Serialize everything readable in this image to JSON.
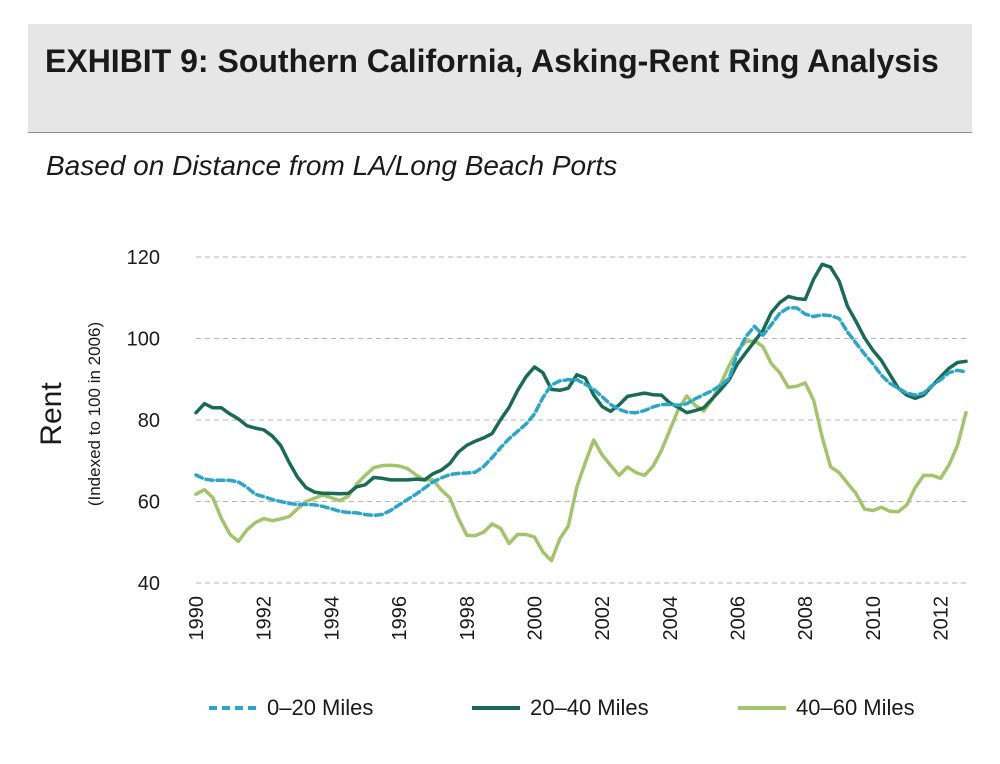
{
  "header": {
    "title": "EXHIBIT 9:  Southern California, Asking-Rent Ring Analysis",
    "subtitle": "Based on Distance from LA/Long Beach Ports"
  },
  "chart_data": {
    "type": "line",
    "ylabel": "Rent",
    "ylabel_sub": "(Indexed to 100 in 2006)",
    "ylim": [
      40,
      120
    ],
    "xlim": [
      1990,
      2012.75
    ],
    "y_ticks": [
      "40",
      "60",
      "80",
      "100",
      "120"
    ],
    "x_ticks": [
      "1990",
      "1992",
      "1994",
      "1996",
      "1998",
      "2000",
      "2002",
      "2004",
      "2006",
      "2008",
      "2010",
      "2012"
    ],
    "grid": "horizontal dashed",
    "legend_position": "bottom",
    "series": [
      {
        "name": "0–20 Miles",
        "color": "#2aa6c9",
        "style": "dashed",
        "x": [
          1990,
          1990.25,
          1990.5,
          1990.75,
          1991,
          1991.25,
          1991.5,
          1991.75,
          1992,
          1992.25,
          1992.5,
          1992.75,
          1993,
          1993.25,
          1993.5,
          1993.75,
          1994,
          1994.25,
          1994.5,
          1994.75,
          1995,
          1995.25,
          1995.5,
          1995.75,
          1996,
          1996.25,
          1996.5,
          1996.75,
          1997,
          1997.25,
          1997.5,
          1997.75,
          1998,
          1998.25,
          1998.5,
          1998.75,
          1999,
          1999.25,
          1999.5,
          1999.75,
          2000,
          2000.25,
          2000.5,
          2000.75,
          2001,
          2001.25,
          2001.5,
          2001.75,
          2002,
          2002.25,
          2002.5,
          2002.75,
          2003,
          2003.25,
          2003.5,
          2003.75,
          2004,
          2004.25,
          2004.5,
          2004.75,
          2005,
          2005.25,
          2005.5,
          2005.75,
          2006,
          2006.25,
          2006.5,
          2006.75,
          2007,
          2007.25,
          2007.5,
          2007.75,
          2008,
          2008.25,
          2008.5,
          2008.75,
          2009,
          2009.25,
          2009.5,
          2009.75,
          2010,
          2010.25,
          2010.5,
          2010.75,
          2011,
          2011.25,
          2011.5,
          2011.75,
          2012,
          2012.25,
          2012.5,
          2012.75
        ],
        "values": [
          66.5,
          65.5,
          65.2,
          65.2,
          65.2,
          64.8,
          63.5,
          61.8,
          61.2,
          60.5,
          60.0,
          59.5,
          59.3,
          59.3,
          59.2,
          58.8,
          58.2,
          57.6,
          57.3,
          57.2,
          56.8,
          56.6,
          56.8,
          57.8,
          59.2,
          60.5,
          61.8,
          63.3,
          64.8,
          65.8,
          66.6,
          66.9,
          67.0,
          67.2,
          68.6,
          70.8,
          73.2,
          75.4,
          77.2,
          79.0,
          81.5,
          85.5,
          88.6,
          89.6,
          89.9,
          89.9,
          88.8,
          87.5,
          85.7,
          83.8,
          82.6,
          81.9,
          81.8,
          82.3,
          83.2,
          83.8,
          83.8,
          83.6,
          84.0,
          85.2,
          86.2,
          87.2,
          88.5,
          90.2,
          96.5,
          100.5,
          103.0,
          100.8,
          103.4,
          106.2,
          107.5,
          107.5,
          106.0,
          105.4,
          105.8,
          105.6,
          104.9,
          101.6,
          98.9,
          96.2,
          93.8,
          91.0,
          89.0,
          87.8,
          86.6,
          86.1,
          86.6,
          88.5,
          89.9,
          91.6,
          92.2,
          91.8
        ]
      },
      {
        "name": "20–40 Miles",
        "color": "#1a6b55",
        "style": "solid",
        "x": [
          1990,
          1990.25,
          1990.5,
          1990.75,
          1991,
          1991.25,
          1991.5,
          1991.75,
          1992,
          1992.25,
          1992.5,
          1992.75,
          1993,
          1993.25,
          1993.5,
          1993.75,
          1994,
          1994.25,
          1994.5,
          1994.75,
          1995,
          1995.25,
          1995.5,
          1995.75,
          1996,
          1996.25,
          1996.5,
          1996.75,
          1997,
          1997.25,
          1997.5,
          1997.75,
          1998,
          1998.25,
          1998.5,
          1998.75,
          1999,
          1999.25,
          1999.5,
          1999.75,
          2000,
          2000.25,
          2000.5,
          2000.75,
          2001,
          2001.25,
          2001.5,
          2001.75,
          2002,
          2002.25,
          2002.5,
          2002.75,
          2003,
          2003.25,
          2003.5,
          2003.75,
          2004,
          2004.25,
          2004.5,
          2004.75,
          2005,
          2005.25,
          2005.5,
          2005.75,
          2006,
          2006.25,
          2006.5,
          2006.75,
          2007,
          2007.25,
          2007.5,
          2007.75,
          2008,
          2008.25,
          2008.5,
          2008.75,
          2009,
          2009.25,
          2009.5,
          2009.75,
          2010,
          2010.25,
          2010.5,
          2010.75,
          2011,
          2011.25,
          2011.5,
          2011.75,
          2012,
          2012.25,
          2012.5,
          2012.75
        ],
        "values": [
          81.8,
          84.0,
          83.0,
          83.0,
          81.5,
          80.3,
          78.6,
          78.0,
          77.6,
          76.1,
          73.8,
          69.6,
          66.0,
          63.4,
          62.3,
          62.0,
          62.0,
          61.9,
          62.0,
          63.6,
          64.1,
          65.9,
          65.7,
          65.3,
          65.3,
          65.3,
          65.5,
          65.3,
          66.8,
          67.7,
          69.3,
          72.1,
          73.8,
          74.8,
          75.6,
          76.7,
          80.1,
          83.1,
          87.2,
          90.6,
          93.0,
          91.6,
          87.5,
          87.3,
          87.8,
          91.1,
          90.3,
          86.1,
          83.3,
          82.1,
          83.7,
          85.8,
          86.2,
          86.6,
          86.2,
          86.1,
          84.2,
          83.1,
          81.8,
          82.3,
          83.0,
          85.2,
          87.4,
          89.9,
          93.8,
          96.6,
          99.3,
          102.0,
          106.4,
          108.8,
          110.3,
          109.8,
          109.6,
          114.6,
          118.2,
          117.5,
          114.1,
          107.9,
          104.2,
          100.2,
          97.1,
          94.6,
          91.2,
          87.8,
          86.1,
          85.3,
          86.1,
          88.4,
          90.6,
          92.7,
          94.1,
          94.4
        ]
      },
      {
        "name": "40–60 Miles",
        "color": "#a3c46b",
        "style": "solid",
        "x": [
          1990,
          1990.25,
          1990.5,
          1990.75,
          1991,
          1991.25,
          1991.5,
          1991.75,
          1992,
          1992.25,
          1992.5,
          1992.75,
          1993,
          1993.25,
          1993.5,
          1993.75,
          1994,
          1994.25,
          1994.5,
          1994.75,
          1995,
          1995.25,
          1995.5,
          1995.75,
          1996,
          1996.25,
          1996.5,
          1996.75,
          1997,
          1997.25,
          1997.5,
          1997.75,
          1998,
          1998.25,
          1998.5,
          1998.75,
          1999,
          1999.25,
          1999.5,
          1999.75,
          2000,
          2000.25,
          2000.5,
          2000.75,
          2001,
          2001.25,
          2001.5,
          2001.75,
          2002,
          2002.25,
          2002.5,
          2002.75,
          2003,
          2003.25,
          2003.5,
          2003.75,
          2004,
          2004.25,
          2004.5,
          2004.75,
          2005,
          2005.25,
          2005.5,
          2005.75,
          2006,
          2006.25,
          2006.5,
          2006.75,
          2007,
          2007.25,
          2007.5,
          2007.75,
          2008,
          2008.25,
          2008.5,
          2008.75,
          2009,
          2009.25,
          2009.5,
          2009.75,
          2010,
          2010.25,
          2010.5,
          2010.75,
          2011,
          2011.25,
          2011.5,
          2011.75,
          2012,
          2012.25,
          2012.5,
          2012.75
        ],
        "values": [
          61.8,
          62.9,
          60.9,
          55.8,
          52.0,
          50.2,
          53.0,
          54.8,
          55.8,
          55.3,
          55.7,
          56.3,
          58.2,
          60.0,
          60.8,
          61.6,
          60.9,
          60.2,
          61.3,
          64.3,
          66.4,
          68.3,
          68.8,
          68.9,
          68.7,
          68.1,
          66.5,
          65.3,
          65.3,
          62.8,
          60.9,
          55.9,
          51.7,
          51.6,
          52.5,
          54.5,
          53.4,
          49.7,
          51.9,
          51.9,
          51.3,
          47.6,
          45.5,
          50.8,
          54.0,
          63.5,
          69.5,
          75.1,
          71.4,
          68.9,
          66.4,
          68.5,
          67.1,
          66.4,
          68.6,
          72.5,
          77.5,
          82.6,
          85.9,
          83.6,
          82.2,
          85.0,
          88.8,
          93.3,
          97.0,
          99.3,
          99.4,
          98.0,
          93.8,
          91.6,
          88.0,
          88.3,
          89.1,
          84.8,
          75.8,
          68.5,
          67.1,
          64.5,
          62.0,
          58.1,
          57.8,
          58.6,
          57.6,
          57.5,
          59.2,
          63.4,
          66.4,
          66.4,
          65.7,
          69.0,
          73.8,
          81.8
        ]
      }
    ]
  }
}
